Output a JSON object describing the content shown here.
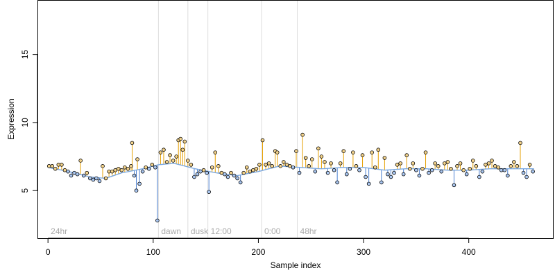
{
  "chart_data": {
    "type": "scatter",
    "title": "",
    "xlabel": "Sample index",
    "ylabel": "Expression",
    "xlim": [
      -10,
      480
    ],
    "ylim": [
      1.5,
      19
    ],
    "x_ticks": [
      0,
      100,
      200,
      300,
      400
    ],
    "y_ticks": [
      5,
      10,
      15
    ],
    "grid": false,
    "baseline_smoothing": "loess",
    "colors": {
      "above_baseline": "#E69F00",
      "below_baseline": "#4A7FD0",
      "baseline_line": "#7AA8E0",
      "marker_edge": "#000000",
      "marker_above": "#F2D28B",
      "marker_below": "#A9C6F0",
      "markers_vertical_lines": "#dddddd",
      "marker_label": "#aaaaaa"
    },
    "vertical_markers": [
      {
        "x": 0,
        "label": "24hr",
        "line": false
      },
      {
        "x": 105,
        "label": "dawn",
        "line": true
      },
      {
        "x": 133,
        "label": "dusk",
        "line": true
      },
      {
        "x": 152,
        "label": "12:00",
        "line": true
      },
      {
        "x": 203,
        "label": "0:00",
        "line": true
      },
      {
        "x": 237,
        "label": "48hr",
        "line": true
      }
    ],
    "baseline": {
      "x": [
        0,
        20,
        40,
        55,
        70,
        90,
        105,
        120,
        140,
        160,
        180,
        200,
        220,
        240,
        260,
        280,
        300,
        320,
        340,
        360,
        380,
        400,
        420,
        440,
        463
      ],
      "y": [
        6.7,
        6.4,
        6.0,
        5.9,
        6.3,
        6.6,
        6.9,
        7.0,
        6.6,
        6.3,
        6.1,
        6.4,
        6.8,
        6.7,
        6.6,
        6.7,
        6.7,
        6.5,
        6.6,
        6.6,
        6.5,
        6.5,
        6.6,
        6.6,
        6.6
      ]
    },
    "points": {
      "x": [
        1,
        4,
        7,
        10,
        13,
        16,
        19,
        22,
        25,
        28,
        31,
        34,
        37,
        40,
        43,
        46,
        49,
        52,
        55,
        58,
        61,
        64,
        67,
        70,
        73,
        76,
        79,
        80,
        82,
        84,
        85,
        87,
        90,
        93,
        96,
        99,
        102,
        104,
        107,
        110,
        113,
        116,
        119,
        122,
        124,
        126,
        128,
        130,
        133,
        136,
        139,
        142,
        145,
        148,
        151,
        153,
        156,
        159,
        162,
        165,
        168,
        171,
        174,
        177,
        180,
        183,
        186,
        189,
        192,
        195,
        198,
        201,
        204,
        207,
        210,
        213,
        216,
        218,
        221,
        224,
        227,
        230,
        233,
        236,
        239,
        242,
        245,
        248,
        251,
        254,
        257,
        260,
        263,
        266,
        269,
        272,
        275,
        278,
        281,
        284,
        287,
        290,
        293,
        296,
        299,
        302,
        305,
        308,
        311,
        314,
        317,
        320,
        323,
        326,
        329,
        332,
        335,
        338,
        341,
        344,
        347,
        350,
        353,
        356,
        359,
        362,
        365,
        368,
        371,
        374,
        377,
        380,
        383,
        386,
        389,
        392,
        395,
        398,
        401,
        404,
        407,
        410,
        413,
        416,
        419,
        422,
        425,
        428,
        431,
        434,
        437,
        440,
        443,
        446,
        449,
        452,
        455,
        458,
        461
      ],
      "y": [
        6.8,
        6.8,
        6.6,
        6.9,
        6.9,
        6.5,
        6.4,
        6.1,
        6.3,
        6.2,
        7.2,
        6.1,
        6.3,
        5.9,
        5.8,
        5.9,
        5.7,
        6.8,
        5.9,
        6.4,
        6.4,
        6.5,
        6.6,
        6.5,
        6.7,
        6.6,
        6.8,
        8.5,
        6.1,
        5.0,
        7.3,
        5.5,
        6.4,
        6.7,
        6.6,
        6.9,
        6.7,
        2.8,
        7.8,
        8.0,
        7.1,
        7.6,
        7.2,
        7.5,
        8.7,
        8.8,
        8.0,
        8.6,
        7.2,
        6.9,
        6.0,
        6.2,
        6.4,
        6.5,
        6.3,
        4.9,
        6.7,
        7.8,
        6.8,
        6.3,
        6.2,
        6.0,
        6.3,
        6.1,
        5.9,
        5.6,
        6.3,
        6.7,
        6.4,
        6.5,
        6.6,
        6.9,
        8.7,
        6.9,
        7.0,
        6.8,
        7.9,
        7.8,
        6.8,
        7.1,
        6.9,
        6.8,
        6.7,
        7.9,
        6.3,
        9.1,
        7.4,
        6.8,
        7.3,
        6.4,
        8.1,
        7.5,
        7.1,
        6.3,
        7.0,
        6.5,
        5.6,
        7.0,
        7.9,
        6.2,
        6.6,
        7.8,
        6.8,
        6.5,
        7.6,
        6.0,
        5.5,
        7.8,
        6.7,
        8.0,
        5.6,
        7.4,
        6.2,
        6.0,
        6.3,
        6.9,
        7.0,
        6.2,
        7.6,
        6.6,
        7.0,
        6.5,
        6.1,
        6.6,
        7.8,
        6.3,
        6.5,
        7.0,
        6.8,
        6.4,
        7.0,
        7.1,
        6.6,
        5.4,
        6.8,
        7.0,
        6.5,
        6.2,
        6.6,
        7.2,
        6.8,
        6.0,
        6.4,
        6.9,
        7.0,
        7.2,
        6.8,
        6.7,
        6.5,
        6.5,
        6.1,
        6.8,
        7.1,
        6.8,
        8.5,
        6.3,
        6.0,
        6.9,
        6.4
      ]
    }
  }
}
